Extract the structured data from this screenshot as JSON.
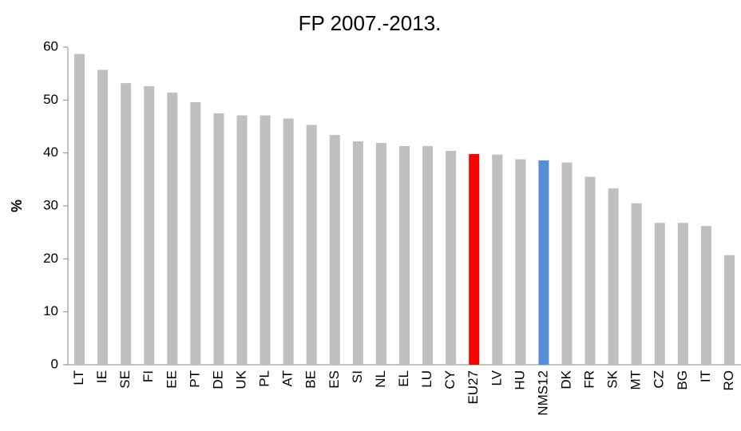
{
  "chart_data": {
    "type": "bar",
    "title": "FP 2007.-2013.",
    "ylabel": "%",
    "categories": [
      "LT",
      "IE",
      "SE",
      "FI",
      "EE",
      "PT",
      "DE",
      "UK",
      "PL",
      "AT",
      "BE",
      "ES",
      "SI",
      "NL",
      "EL",
      "LU",
      "CY",
      "EU27",
      "LV",
      "HU",
      "NMS12",
      "DK",
      "FR",
      "SK",
      "MT",
      "CZ",
      "BG",
      "IT",
      "RO"
    ],
    "values": [
      58.7,
      55.7,
      53.2,
      52.6,
      51.4,
      49.6,
      47.5,
      47.1,
      47.1,
      46.5,
      45.3,
      43.4,
      42.2,
      41.9,
      41.3,
      41.3,
      40.4,
      39.8,
      39.7,
      38.8,
      38.6,
      38.2,
      35.5,
      33.3,
      30.5,
      26.8,
      26.8,
      26.2,
      20.7
    ],
    "colors": [
      "#bfbfbf",
      "#bfbfbf",
      "#bfbfbf",
      "#bfbfbf",
      "#bfbfbf",
      "#bfbfbf",
      "#bfbfbf",
      "#bfbfbf",
      "#bfbfbf",
      "#bfbfbf",
      "#bfbfbf",
      "#bfbfbf",
      "#bfbfbf",
      "#bfbfbf",
      "#bfbfbf",
      "#bfbfbf",
      "#bfbfbf",
      "#ff0000",
      "#bfbfbf",
      "#bfbfbf",
      "#558ed5",
      "#bfbfbf",
      "#bfbfbf",
      "#bfbfbf",
      "#bfbfbf",
      "#bfbfbf",
      "#bfbfbf",
      "#bfbfbf",
      "#bfbfbf"
    ],
    "ylim": [
      0,
      60
    ],
    "yticks": [
      0,
      10,
      20,
      30,
      40,
      50,
      60
    ],
    "grid": false
  }
}
